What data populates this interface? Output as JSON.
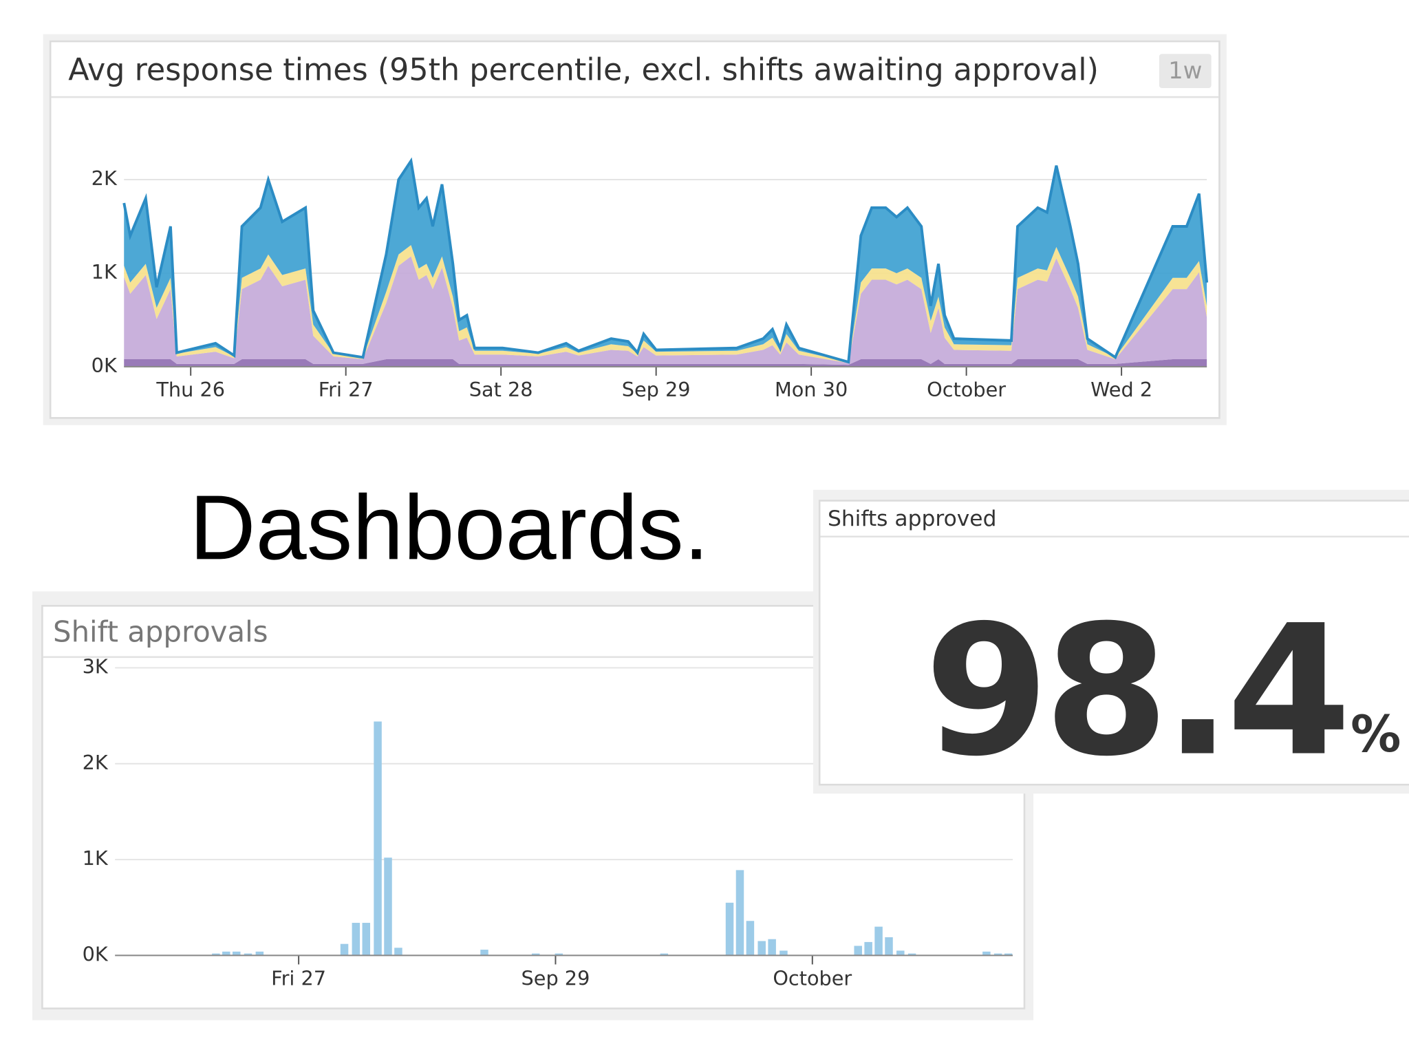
{
  "heading": "Dashboards.",
  "chart_data": [
    {
      "type": "stacked_area",
      "title": "Avg response times (95th percentile, excl. shifts awaiting approval)",
      "badge": "1w",
      "x": [
        -0.43,
        -0.39,
        -0.29,
        -0.22,
        -0.13,
        -0.09,
        0.16,
        0.28,
        0.33,
        0.45,
        0.5,
        0.59,
        0.74,
        0.79,
        0.92,
        1.11,
        1.26,
        1.34,
        1.42,
        1.47,
        1.52,
        1.56,
        1.62,
        1.69,
        1.73,
        1.78,
        1.83,
        2.01,
        2.24,
        2.42,
        2.5,
        2.71,
        2.82,
        2.88,
        2.92,
        3.0,
        3.52,
        3.69,
        3.75,
        3.8,
        3.84,
        3.92,
        4.24,
        4.32,
        4.39,
        4.48,
        4.55,
        4.62,
        4.71,
        4.77,
        4.82,
        4.86,
        4.92,
        5.29,
        5.33,
        5.46,
        5.52,
        5.58,
        5.67,
        5.72,
        5.78,
        5.96,
        6.33,
        6.42,
        6.5,
        6.55
      ],
      "series": [
        {
          "color": "#8e6bb0",
          "values": [
            80,
            80,
            80,
            80,
            80,
            30,
            30,
            30,
            80,
            80,
            80,
            80,
            80,
            30,
            30,
            30,
            80,
            80,
            80,
            80,
            80,
            80,
            80,
            80,
            30,
            30,
            30,
            30,
            30,
            30,
            30,
            30,
            30,
            30,
            30,
            30,
            30,
            30,
            30,
            30,
            30,
            30,
            20,
            80,
            80,
            80,
            80,
            80,
            80,
            30,
            80,
            30,
            30,
            30,
            80,
            80,
            80,
            80,
            80,
            80,
            30,
            30,
            80,
            80,
            80,
            80
          ]
        },
        {
          "color": "#c3a8d8",
          "values": [
            880,
            700,
            900,
            430,
            750,
            80,
            130,
            60,
            750,
            850,
            1000,
            780,
            850,
            300,
            80,
            50,
            600,
            1000,
            1100,
            850,
            900,
            750,
            980,
            550,
            250,
            280,
            100,
            100,
            80,
            130,
            90,
            150,
            140,
            80,
            180,
            90,
            100,
            150,
            200,
            100,
            230,
            100,
            20,
            700,
            850,
            850,
            800,
            850,
            750,
            330,
            550,
            280,
            150,
            140,
            750,
            850,
            830,
            1080,
            750,
            550,
            150,
            50,
            750,
            750,
            930,
            450
          ]
        },
        {
          "color": "#f6e08a",
          "values": [
            120,
            120,
            120,
            120,
            120,
            30,
            50,
            20,
            120,
            120,
            120,
            120,
            120,
            120,
            30,
            20,
            120,
            120,
            120,
            120,
            120,
            120,
            120,
            120,
            100,
            110,
            40,
            40,
            30,
            50,
            30,
            60,
            50,
            30,
            70,
            40,
            40,
            60,
            80,
            40,
            90,
            40,
            10,
            120,
            120,
            120,
            120,
            120,
            120,
            130,
            120,
            110,
            60,
            60,
            120,
            120,
            120,
            120,
            120,
            120,
            60,
            20,
            120,
            120,
            120,
            120
          ]
        },
        {
          "color": "#3a9fd0",
          "values": [
            670,
            500,
            700,
            220,
            550,
            10,
            40,
            10,
            550,
            650,
            800,
            570,
            650,
            150,
            10,
            0,
            400,
            800,
            900,
            650,
            700,
            550,
            770,
            350,
            120,
            130,
            30,
            30,
            10,
            40,
            20,
            60,
            50,
            10,
            70,
            20,
            30,
            60,
            90,
            30,
            100,
            30,
            0,
            500,
            650,
            650,
            600,
            650,
            550,
            160,
            350,
            130,
            60,
            50,
            550,
            650,
            620,
            870,
            550,
            350,
            60,
            0,
            550,
            550,
            720,
            250
          ]
        }
      ],
      "xlim": [
        -0.43,
        6.55
      ],
      "xticks": [
        {
          "value": 0,
          "label": "Thu 26"
        },
        {
          "value": 1,
          "label": "Fri 27"
        },
        {
          "value": 2,
          "label": "Sat 28"
        },
        {
          "value": 3,
          "label": "Sep 29"
        },
        {
          "value": 4,
          "label": "Mon 30"
        },
        {
          "value": 5,
          "label": "October"
        },
        {
          "value": 6,
          "label": "Wed 2"
        }
      ],
      "ylim": [
        0,
        2700
      ],
      "yticks": [
        {
          "value": 0,
          "label": "0K"
        },
        {
          "value": 1000,
          "label": "1K"
        },
        {
          "value": 2000,
          "label": "2K"
        }
      ],
      "grid": true
    },
    {
      "type": "bar",
      "title": "Shift approvals",
      "color": "#9ccbe8",
      "x": [
        -0.64,
        -0.56,
        -0.48,
        -0.39,
        -0.3,
        0.36,
        0.45,
        0.53,
        0.62,
        0.7,
        0.78,
        1.45,
        1.85,
        2.03,
        2.85,
        3.36,
        3.44,
        3.52,
        3.61,
        3.69,
        3.78,
        4.36,
        4.44,
        4.52,
        4.6,
        4.69,
        4.78,
        5.36,
        5.45,
        5.53
      ],
      "values": [
        20,
        40,
        40,
        20,
        40,
        120,
        340,
        340,
        2440,
        1020,
        80,
        60,
        20,
        20,
        20,
        550,
        890,
        360,
        150,
        170,
        50,
        100,
        140,
        300,
        190,
        50,
        20,
        40,
        20,
        20
      ],
      "xlim": [
        -1.43,
        5.56
      ],
      "xticks": [
        {
          "value": 0,
          "label": "Fri 27"
        },
        {
          "value": 2,
          "label": "Sep 29"
        },
        {
          "value": 4,
          "label": "October"
        }
      ],
      "ylim": [
        0,
        3000
      ],
      "yticks": [
        {
          "value": 0,
          "label": "0K"
        },
        {
          "value": 1000,
          "label": "1K"
        },
        {
          "value": 2000,
          "label": "2K"
        },
        {
          "value": 3000,
          "label": "3K"
        }
      ],
      "grid": true
    },
    {
      "type": "query_value",
      "title": "Shifts approved",
      "value": 98.4,
      "unit": "%"
    }
  ]
}
